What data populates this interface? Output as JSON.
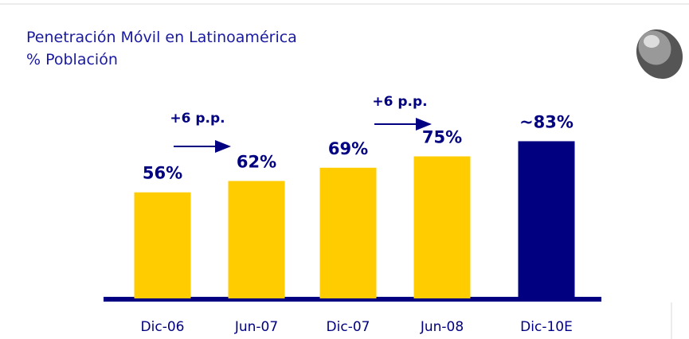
{
  "chart_data": {
    "type": "bar",
    "title": "Penetración Móvil en Latinoamérica",
    "subtitle": "% Población",
    "categories": [
      "Dic-06",
      "Jun-07",
      "Dic-07",
      "Jun-08",
      "Dic-10E"
    ],
    "values": [
      56,
      62,
      69,
      75,
      83
    ],
    "value_labels": [
      "56%",
      "62%",
      "69%",
      "75%",
      "~83%"
    ],
    "colors": [
      "#ffcc00",
      "#ffcc00",
      "#ffcc00",
      "#ffcc00",
      "#000080"
    ],
    "annotations": [
      "+6 p.p.",
      "+6 p.p."
    ]
  }
}
